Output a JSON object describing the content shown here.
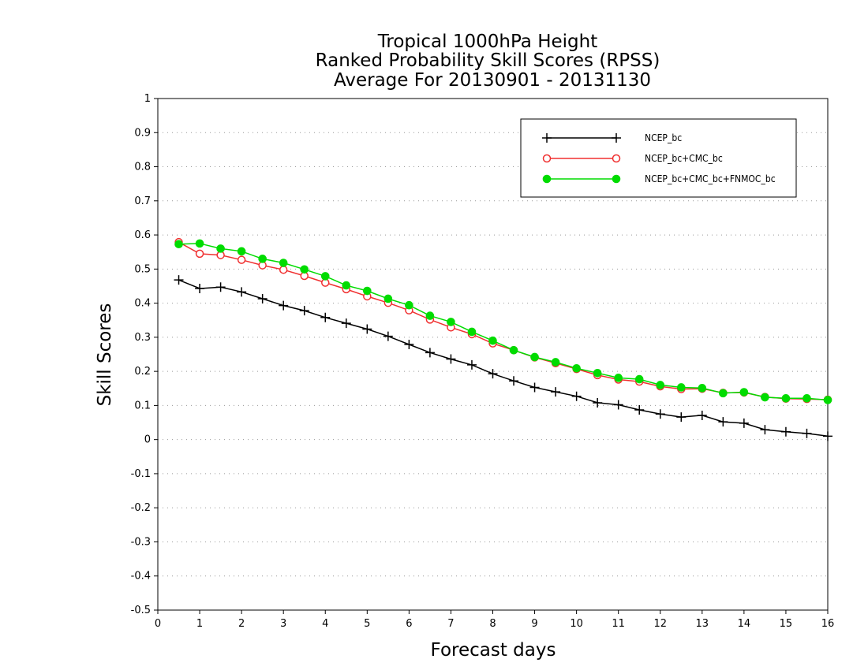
{
  "chart_data": {
    "type": "line",
    "title": [
      "Tropical 1000hPa Height",
      "Ranked Probability Skill Scores (RPSS)",
      "Average For 20130901 - 20131130"
    ],
    "xlabel": "Forecast days",
    "ylabel": "Skill Scores",
    "xlim": [
      0,
      16
    ],
    "ylim": [
      -0.5,
      1
    ],
    "xticks": [
      0,
      1,
      2,
      3,
      4,
      5,
      6,
      7,
      8,
      9,
      10,
      11,
      12,
      13,
      14,
      15,
      16
    ],
    "yticks": [
      -0.5,
      -0.4,
      -0.3,
      -0.2,
      -0.1,
      0,
      0.1,
      0.2,
      0.3,
      0.4,
      0.5,
      0.6,
      0.7,
      0.8,
      0.9,
      1
    ],
    "ytick_labels": [
      "-0.5",
      "-0.4",
      "-0.3",
      "-0.2",
      "-0.1",
      "0",
      "0.1",
      "0.2",
      "0.3",
      "0.4",
      "0.5",
      "0.6",
      "0.7",
      "0.8",
      "0.9",
      "1"
    ],
    "grid": "horizontal-dotted",
    "legend_position": "top-right",
    "x": [
      0.5,
      1,
      1.5,
      2,
      2.5,
      3,
      3.5,
      4,
      4.5,
      5,
      5.5,
      6,
      6.5,
      7,
      7.5,
      8,
      8.5,
      9,
      9.5,
      10,
      10.5,
      11,
      11.5,
      12,
      12.5,
      13,
      13.5,
      14,
      14.5,
      15,
      15.5,
      16
    ],
    "series": [
      {
        "name": "NCEP_bc",
        "color": "#000000",
        "marker": "plus",
        "values": [
          0.468,
          0.443,
          0.447,
          0.433,
          0.413,
          0.393,
          0.378,
          0.358,
          0.341,
          0.324,
          0.303,
          0.279,
          0.255,
          0.236,
          0.219,
          0.193,
          0.172,
          0.153,
          0.14,
          0.127,
          0.108,
          0.102,
          0.087,
          0.075,
          0.066,
          0.071,
          0.052,
          0.048,
          0.029,
          0.023,
          0.018,
          0.01
        ]
      },
      {
        "name": "NCEP_bc+CMC_bc",
        "color": "#f03030",
        "marker": "open-circle",
        "values": [
          0.579,
          0.545,
          0.541,
          0.527,
          0.511,
          0.498,
          0.48,
          0.46,
          0.441,
          0.42,
          0.401,
          0.379,
          0.352,
          0.329,
          0.309,
          0.282,
          0.262,
          0.241,
          0.224,
          0.207,
          0.189,
          0.176,
          0.17,
          0.156,
          0.148,
          0.149,
          0.137,
          0.138,
          0.125,
          0.12,
          0.119,
          0.117
        ]
      },
      {
        "name": "NCEP_bc+CMC_bc+FNMOC_bc",
        "color": "#00dc00",
        "marker": "filled-circle",
        "values": [
          0.573,
          0.575,
          0.56,
          0.552,
          0.53,
          0.518,
          0.499,
          0.479,
          0.452,
          0.436,
          0.413,
          0.394,
          0.363,
          0.345,
          0.316,
          0.29,
          0.262,
          0.242,
          0.227,
          0.209,
          0.195,
          0.181,
          0.177,
          0.16,
          0.153,
          0.151,
          0.136,
          0.139,
          0.124,
          0.121,
          0.121,
          0.116
        ]
      }
    ]
  }
}
